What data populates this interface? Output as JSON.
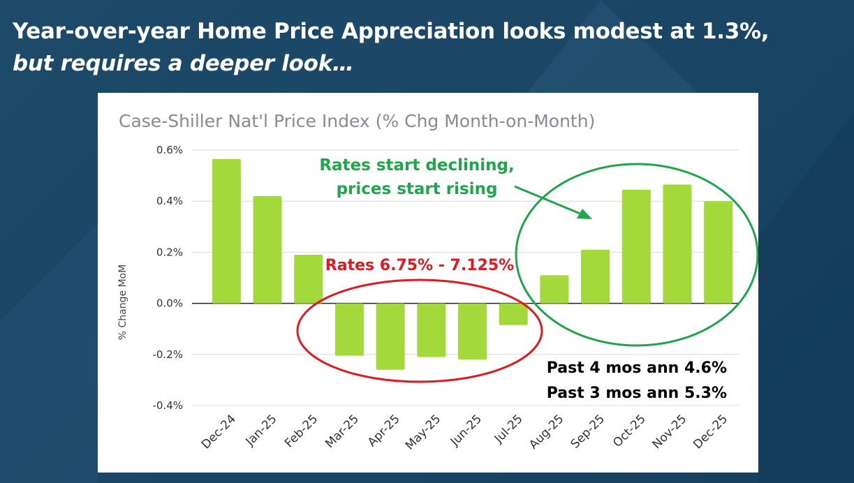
{
  "headline": {
    "line1": "Year-over-year Home Price Appreciation looks modest at 1.3%,",
    "line2": "but requires a deeper look…"
  },
  "chart_data": {
    "type": "bar",
    "title": "Case-Shiller Nat'l Price Index (% Chg Month-on-Month)",
    "xlabel": "",
    "ylabel": "% Change MoM",
    "ylim": [
      -0.4,
      0.6
    ],
    "yticks": [
      "0.6%",
      "0.4%",
      "0.2%",
      "0.0%",
      "-0.2%",
      "-0.4%"
    ],
    "ytick_values": [
      0.6,
      0.4,
      0.2,
      0.0,
      -0.2,
      -0.4
    ],
    "categories": [
      "Dec-24",
      "Jan-25",
      "Feb-25",
      "Mar-25",
      "Apr-25",
      "May-25",
      "Jun-25",
      "Jul-25",
      "Aug-25",
      "Sep-25",
      "Oct-25",
      "Nov-25",
      "Dec-25"
    ],
    "values": [
      0.565,
      0.42,
      0.19,
      -0.205,
      -0.26,
      -0.21,
      -0.22,
      -0.085,
      0.11,
      0.21,
      0.445,
      0.465,
      0.4
    ],
    "grid": true,
    "bar_color": "#a3d93a",
    "annotations": {
      "rates_high": "Rates 6.75% - 7.125%",
      "rates_decline_1": "Rates start declining,",
      "rates_decline_2": "prices start rising",
      "past4": "Past 4 mos ann 4.6%",
      "past3": "Past 3 mos ann 5.3%"
    },
    "colors": {
      "red": "#e0191e",
      "green": "#1fa64b",
      "text": "#000000",
      "title": "#8a8a96"
    }
  }
}
